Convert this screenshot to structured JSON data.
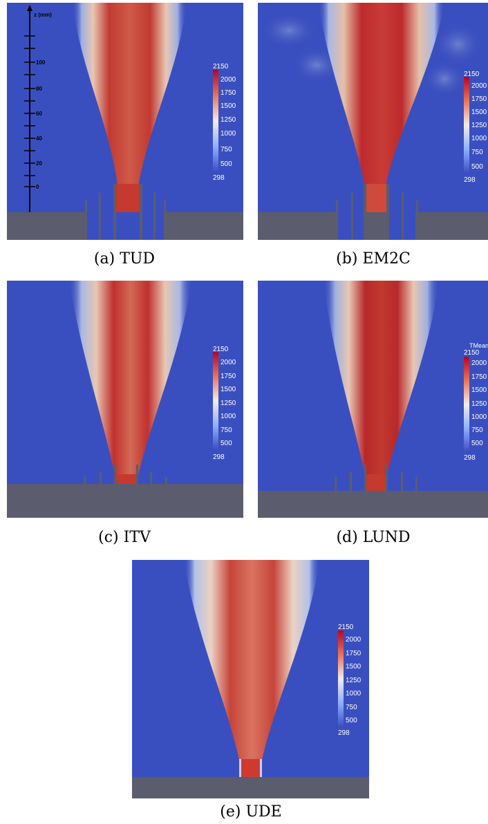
{
  "figure": {
    "panels": [
      {
        "id": "a",
        "caption": "(a)  TUD",
        "colorbar": {
          "max": "2150",
          "ticks": [
            "2000",
            "1750",
            "1500",
            "1250",
            "1000",
            "750",
            "500"
          ],
          "min": "298",
          "title": ""
        },
        "axis": {
          "label": "z (mm)",
          "ticks": [
            "100",
            "80",
            "60",
            "40",
            "20",
            "0"
          ]
        },
        "walls": "tall"
      },
      {
        "id": "b",
        "caption": "(b)  EM2C",
        "colorbar": {
          "max": "2150",
          "ticks": [
            "2000",
            "1750",
            "1500",
            "1250",
            "1000",
            "750",
            "500"
          ],
          "min": "298",
          "title": ""
        },
        "walls": "tall"
      },
      {
        "id": "c",
        "caption": "(c)  ITV",
        "colorbar": {
          "max": "2150",
          "ticks": [
            "2000",
            "1750",
            "1500",
            "1250",
            "1000",
            "750",
            "500"
          ],
          "min": "298",
          "title": ""
        },
        "walls": "short"
      },
      {
        "id": "d",
        "caption": "(d)  LUND",
        "colorbar": {
          "max": "2150",
          "ticks": [
            "2000",
            "1750",
            "1500",
            "1250",
            "1000",
            "750",
            "500"
          ],
          "min": "298",
          "title": "TMean"
        },
        "walls": "short"
      },
      {
        "id": "e",
        "caption": "(e)  UDE",
        "colorbar": {
          "max": "2150",
          "ticks": [
            "2000",
            "1750",
            "1500",
            "1250",
            "1000",
            "750",
            "500"
          ],
          "min": "298",
          "title": ""
        },
        "walls": "none"
      }
    ]
  },
  "colors": {
    "background_blue": "#3a4fbf",
    "flame_red": "#b4252a",
    "flame_core": "#c8463e",
    "flame_edge": "#dde2f0",
    "burner_grey": "#5b5c6d"
  }
}
